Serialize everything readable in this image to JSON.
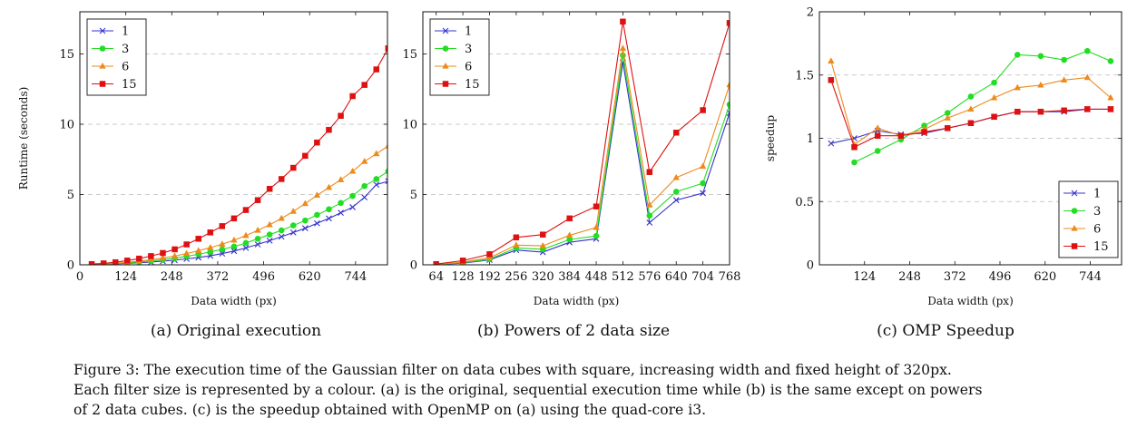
{
  "chart_data": [
    {
      "type": "line",
      "panel": "a",
      "xlabel": "Data width (px)",
      "ylabel": "Runtime (seconds)",
      "xlim": [
        0,
        830
      ],
      "ylim": [
        0,
        18
      ],
      "xticks": [
        0,
        124,
        248,
        372,
        496,
        620,
        744
      ],
      "yticks": [
        0,
        5,
        10,
        15
      ],
      "grid": "horizontal dashed",
      "legend_position": "top-left",
      "series": [
        {
          "name": "1",
          "color": "#3333cc",
          "marker": "x",
          "x": [
            32,
            64,
            96,
            128,
            160,
            192,
            224,
            256,
            288,
            320,
            352,
            384,
            416,
            448,
            480,
            512,
            544,
            576,
            608,
            640,
            672,
            704,
            736,
            768,
            800,
            832
          ],
          "y": [
            0.02,
            0.04,
            0.07,
            0.11,
            0.15,
            0.2,
            0.26,
            0.33,
            0.42,
            0.52,
            0.64,
            0.8,
            0.98,
            1.2,
            1.45,
            1.72,
            2.0,
            2.3,
            2.6,
            2.95,
            3.3,
            3.7,
            4.1,
            4.8,
            5.7,
            5.95
          ]
        },
        {
          "name": "3",
          "color": "#22dd22",
          "marker": "circle",
          "x": [
            32,
            64,
            96,
            128,
            160,
            192,
            224,
            256,
            288,
            320,
            352,
            384,
            416,
            448,
            480,
            512,
            544,
            576,
            608,
            640,
            672,
            704,
            736,
            768,
            800,
            832
          ],
          "y": [
            0.02,
            0.05,
            0.09,
            0.14,
            0.2,
            0.27,
            0.36,
            0.47,
            0.6,
            0.75,
            0.92,
            1.1,
            1.3,
            1.55,
            1.85,
            2.15,
            2.45,
            2.8,
            3.15,
            3.55,
            3.95,
            4.4,
            4.9,
            5.6,
            6.1,
            6.65
          ]
        },
        {
          "name": "6",
          "color": "#ee8a1c",
          "marker": "triangle",
          "x": [
            32,
            64,
            96,
            128,
            160,
            192,
            224,
            256,
            288,
            320,
            352,
            384,
            416,
            448,
            480,
            512,
            544,
            576,
            608,
            640,
            672,
            704,
            736,
            768,
            800,
            832
          ],
          "y": [
            0.03,
            0.06,
            0.11,
            0.18,
            0.26,
            0.36,
            0.48,
            0.62,
            0.8,
            1.0,
            1.22,
            1.47,
            1.75,
            2.08,
            2.45,
            2.85,
            3.3,
            3.8,
            4.35,
            4.95,
            5.5,
            6.05,
            6.65,
            7.35,
            7.9,
            8.45
          ]
        },
        {
          "name": "15",
          "color": "#dd1111",
          "marker": "square",
          "x": [
            32,
            64,
            96,
            128,
            160,
            192,
            224,
            256,
            288,
            320,
            352,
            384,
            416,
            448,
            480,
            512,
            544,
            576,
            608,
            640,
            672,
            704,
            736,
            768,
            800,
            832
          ],
          "y": [
            0.05,
            0.1,
            0.18,
            0.3,
            0.44,
            0.62,
            0.84,
            1.1,
            1.45,
            1.85,
            2.3,
            2.75,
            3.3,
            3.9,
            4.6,
            5.4,
            6.1,
            6.9,
            7.75,
            8.7,
            9.6,
            10.6,
            12.0,
            12.8,
            13.9,
            15.4
          ]
        }
      ]
    },
    {
      "type": "line",
      "panel": "b",
      "xlabel": "Data width (px)",
      "ylabel": "",
      "xlim": [
        32,
        768
      ],
      "ylim": [
        0,
        18
      ],
      "xticks": [
        64,
        128,
        192,
        256,
        320,
        384,
        448,
        512,
        576,
        640,
        704,
        768
      ],
      "yticks": [
        0,
        5,
        10,
        15
      ],
      "grid": "horizontal dashed",
      "legend_position": "top-left",
      "series": [
        {
          "name": "1",
          "color": "#3333cc",
          "marker": "x",
          "x": [
            64,
            128,
            192,
            256,
            320,
            384,
            448,
            512,
            576,
            640,
            704,
            768
          ],
          "y": [
            0.02,
            0.12,
            0.35,
            1.05,
            0.9,
            1.6,
            1.85,
            14.4,
            3.0,
            4.6,
            5.1,
            10.8
          ]
        },
        {
          "name": "3",
          "color": "#22dd22",
          "marker": "circle",
          "x": [
            64,
            128,
            192,
            256,
            320,
            384,
            448,
            512,
            576,
            640,
            704,
            768
          ],
          "y": [
            0.02,
            0.15,
            0.4,
            1.2,
            1.1,
            1.8,
            2.05,
            14.9,
            3.5,
            5.2,
            5.8,
            11.4
          ]
        },
        {
          "name": "6",
          "color": "#ee8a1c",
          "marker": "triangle",
          "x": [
            64,
            128,
            192,
            256,
            320,
            384,
            448,
            512,
            576,
            640,
            704,
            768
          ],
          "y": [
            0.03,
            0.2,
            0.5,
            1.4,
            1.35,
            2.1,
            2.65,
            15.4,
            4.25,
            6.2,
            7.0,
            12.8
          ]
        },
        {
          "name": "15",
          "color": "#dd1111",
          "marker": "square",
          "x": [
            64,
            128,
            192,
            256,
            320,
            384,
            448,
            512,
            576,
            640,
            704,
            768
          ],
          "y": [
            0.05,
            0.3,
            0.75,
            1.95,
            2.15,
            3.3,
            4.15,
            17.3,
            6.6,
            9.4,
            11.0,
            17.2
          ]
        }
      ]
    },
    {
      "type": "line",
      "panel": "c",
      "xlabel": "Data width (px)",
      "ylabel": "speedup",
      "xlim": [
        0,
        830
      ],
      "ylim": [
        0,
        2
      ],
      "xticks": [
        124,
        248,
        372,
        496,
        620,
        744
      ],
      "yticks": [
        0,
        0.5,
        1,
        1.5,
        2
      ],
      "grid": "horizontal dashed",
      "legend_position": "bottom-right",
      "series": [
        {
          "name": "1",
          "color": "#3333cc",
          "marker": "x",
          "x": [
            32,
            96,
            160,
            224,
            288,
            352,
            416,
            480,
            544,
            608,
            672,
            736,
            800
          ],
          "y": [
            0.96,
            1.0,
            1.06,
            1.03,
            1.04,
            1.08,
            1.12,
            1.17,
            1.21,
            1.21,
            1.21,
            1.23,
            1.23
          ]
        },
        {
          "name": "3",
          "color": "#22dd22",
          "marker": "circle",
          "x": [
            96,
            160,
            224,
            288,
            352,
            416,
            480,
            544,
            608,
            672,
            736,
            800
          ],
          "y": [
            0.81,
            0.9,
            0.99,
            1.1,
            1.2,
            1.33,
            1.44,
            1.66,
            1.65,
            1.62,
            1.69,
            1.61
          ]
        },
        {
          "name": "6",
          "color": "#ee8a1c",
          "marker": "triangle",
          "x": [
            32,
            96,
            160,
            224,
            288,
            352,
            416,
            480,
            544,
            608,
            672,
            736,
            800
          ],
          "y": [
            1.61,
            0.95,
            1.08,
            1.02,
            1.07,
            1.16,
            1.23,
            1.32,
            1.4,
            1.42,
            1.46,
            1.48,
            1.32
          ]
        },
        {
          "name": "15",
          "color": "#dd1111",
          "marker": "square",
          "x": [
            32,
            96,
            160,
            224,
            288,
            352,
            416,
            480,
            544,
            608,
            672,
            736,
            800
          ],
          "y": [
            1.46,
            0.93,
            1.02,
            1.02,
            1.05,
            1.08,
            1.12,
            1.17,
            1.21,
            1.21,
            1.22,
            1.23,
            1.23
          ]
        }
      ]
    }
  ],
  "subcaptions": [
    "(a) Original execution",
    "(b) Powers of 2 data size",
    "(c) OMP Speedup"
  ],
  "caption": {
    "line1": "Figure 3: The execution time of the Gaussian filter on data cubes with square, increasing width and fixed height of 320px.",
    "line2": "Each filter size is represented by a colour. (a) is the original, sequential execution time while (b) is the same except on powers",
    "line3": "of 2 data cubes. (c) is the speedup obtained with OpenMP on (a) using the quad-core i3."
  }
}
